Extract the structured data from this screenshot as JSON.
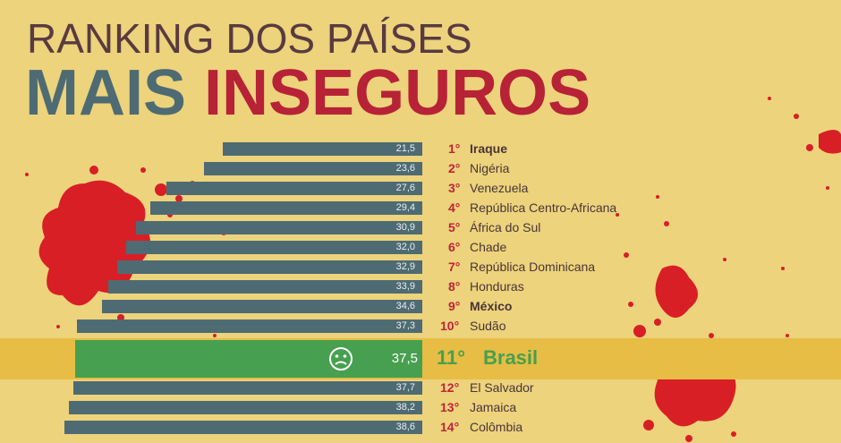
{
  "title_line1": "RANKING DOS PAÍSES",
  "title_line2_a": "MAIS",
  "title_line2_b": "INSEGUROS",
  "highlight_icon": "sad-face-icon",
  "colors": {
    "bar": "#4e6b73",
    "highlight_bar": "#46a04f",
    "rank": "#c0223a",
    "highlight_band": "#e7bd45",
    "background": "#ecd37c"
  },
  "chart_data": {
    "type": "bar",
    "orientation": "horizontal",
    "title": "RANKING DOS PAÍSES MAIS INSEGUROS",
    "xlim": [
      0,
      40
    ],
    "bold_countries": [
      "Iraque",
      "México"
    ],
    "highlight_index": 10,
    "items": [
      {
        "rank": "1°",
        "country": "Iraque",
        "value": 21.5,
        "label": "21,5"
      },
      {
        "rank": "2°",
        "country": "Nigéria",
        "value": 23.6,
        "label": "23,6"
      },
      {
        "rank": "3°",
        "country": "Venezuela",
        "value": 27.6,
        "label": "27,6"
      },
      {
        "rank": "4°",
        "country": "República Centro-Africana",
        "value": 29.4,
        "label": "29,4"
      },
      {
        "rank": "5°",
        "country": "África do Sul",
        "value": 30.9,
        "label": "30,9"
      },
      {
        "rank": "6°",
        "country": "Chade",
        "value": 32.0,
        "label": "32,0"
      },
      {
        "rank": "7°",
        "country": "República Dominicana",
        "value": 32.9,
        "label": "32,9"
      },
      {
        "rank": "8°",
        "country": "Honduras",
        "value": 33.9,
        "label": "33,9"
      },
      {
        "rank": "9°",
        "country": "México",
        "value": 34.6,
        "label": "34,6"
      },
      {
        "rank": "10°",
        "country": "Sudão",
        "value": 37.3,
        "label": "37,3"
      },
      {
        "rank": "11°",
        "country": "Brasil",
        "value": 37.5,
        "label": "37,5"
      },
      {
        "rank": "12°",
        "country": "El Salvador",
        "value": 37.7,
        "label": "37,7"
      },
      {
        "rank": "13°",
        "country": "Jamaica",
        "value": 38.2,
        "label": "38,2"
      },
      {
        "rank": "14°",
        "country": "Colômbia",
        "value": 38.6,
        "label": "38,6"
      }
    ]
  }
}
